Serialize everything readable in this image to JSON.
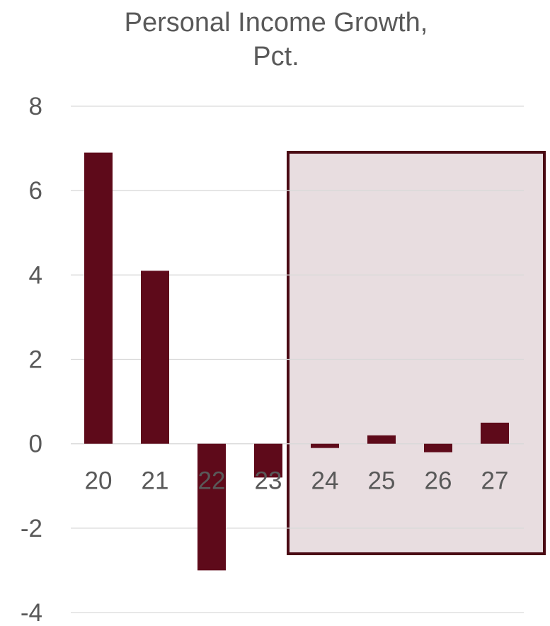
{
  "chart_data": {
    "type": "bar",
    "title": "Personal Income Growth, Pct.",
    "title_lines": [
      "Personal Income Growth,",
      "Pct."
    ],
    "xlabel": "",
    "ylabel": "",
    "categories": [
      "20",
      "21",
      "22",
      "23",
      "24",
      "25",
      "26",
      "27"
    ],
    "values": [
      6.9,
      4.1,
      -3.0,
      -0.8,
      -0.1,
      0.2,
      -0.2,
      0.5
    ],
    "ylim": [
      -4,
      8
    ],
    "yticks": [
      "-4",
      "-2",
      "0",
      "2",
      "4",
      "6",
      "8"
    ],
    "grid": true,
    "legend": "none",
    "highlight": {
      "from_category": "24",
      "to_category": "27",
      "label": ""
    }
  },
  "colors": {
    "bar": "#5e0a1a",
    "highlight_fill": "#e8dde0",
    "highlight_border": "#4a0a14",
    "grid": "#d9d9d9",
    "text": "#595959"
  }
}
